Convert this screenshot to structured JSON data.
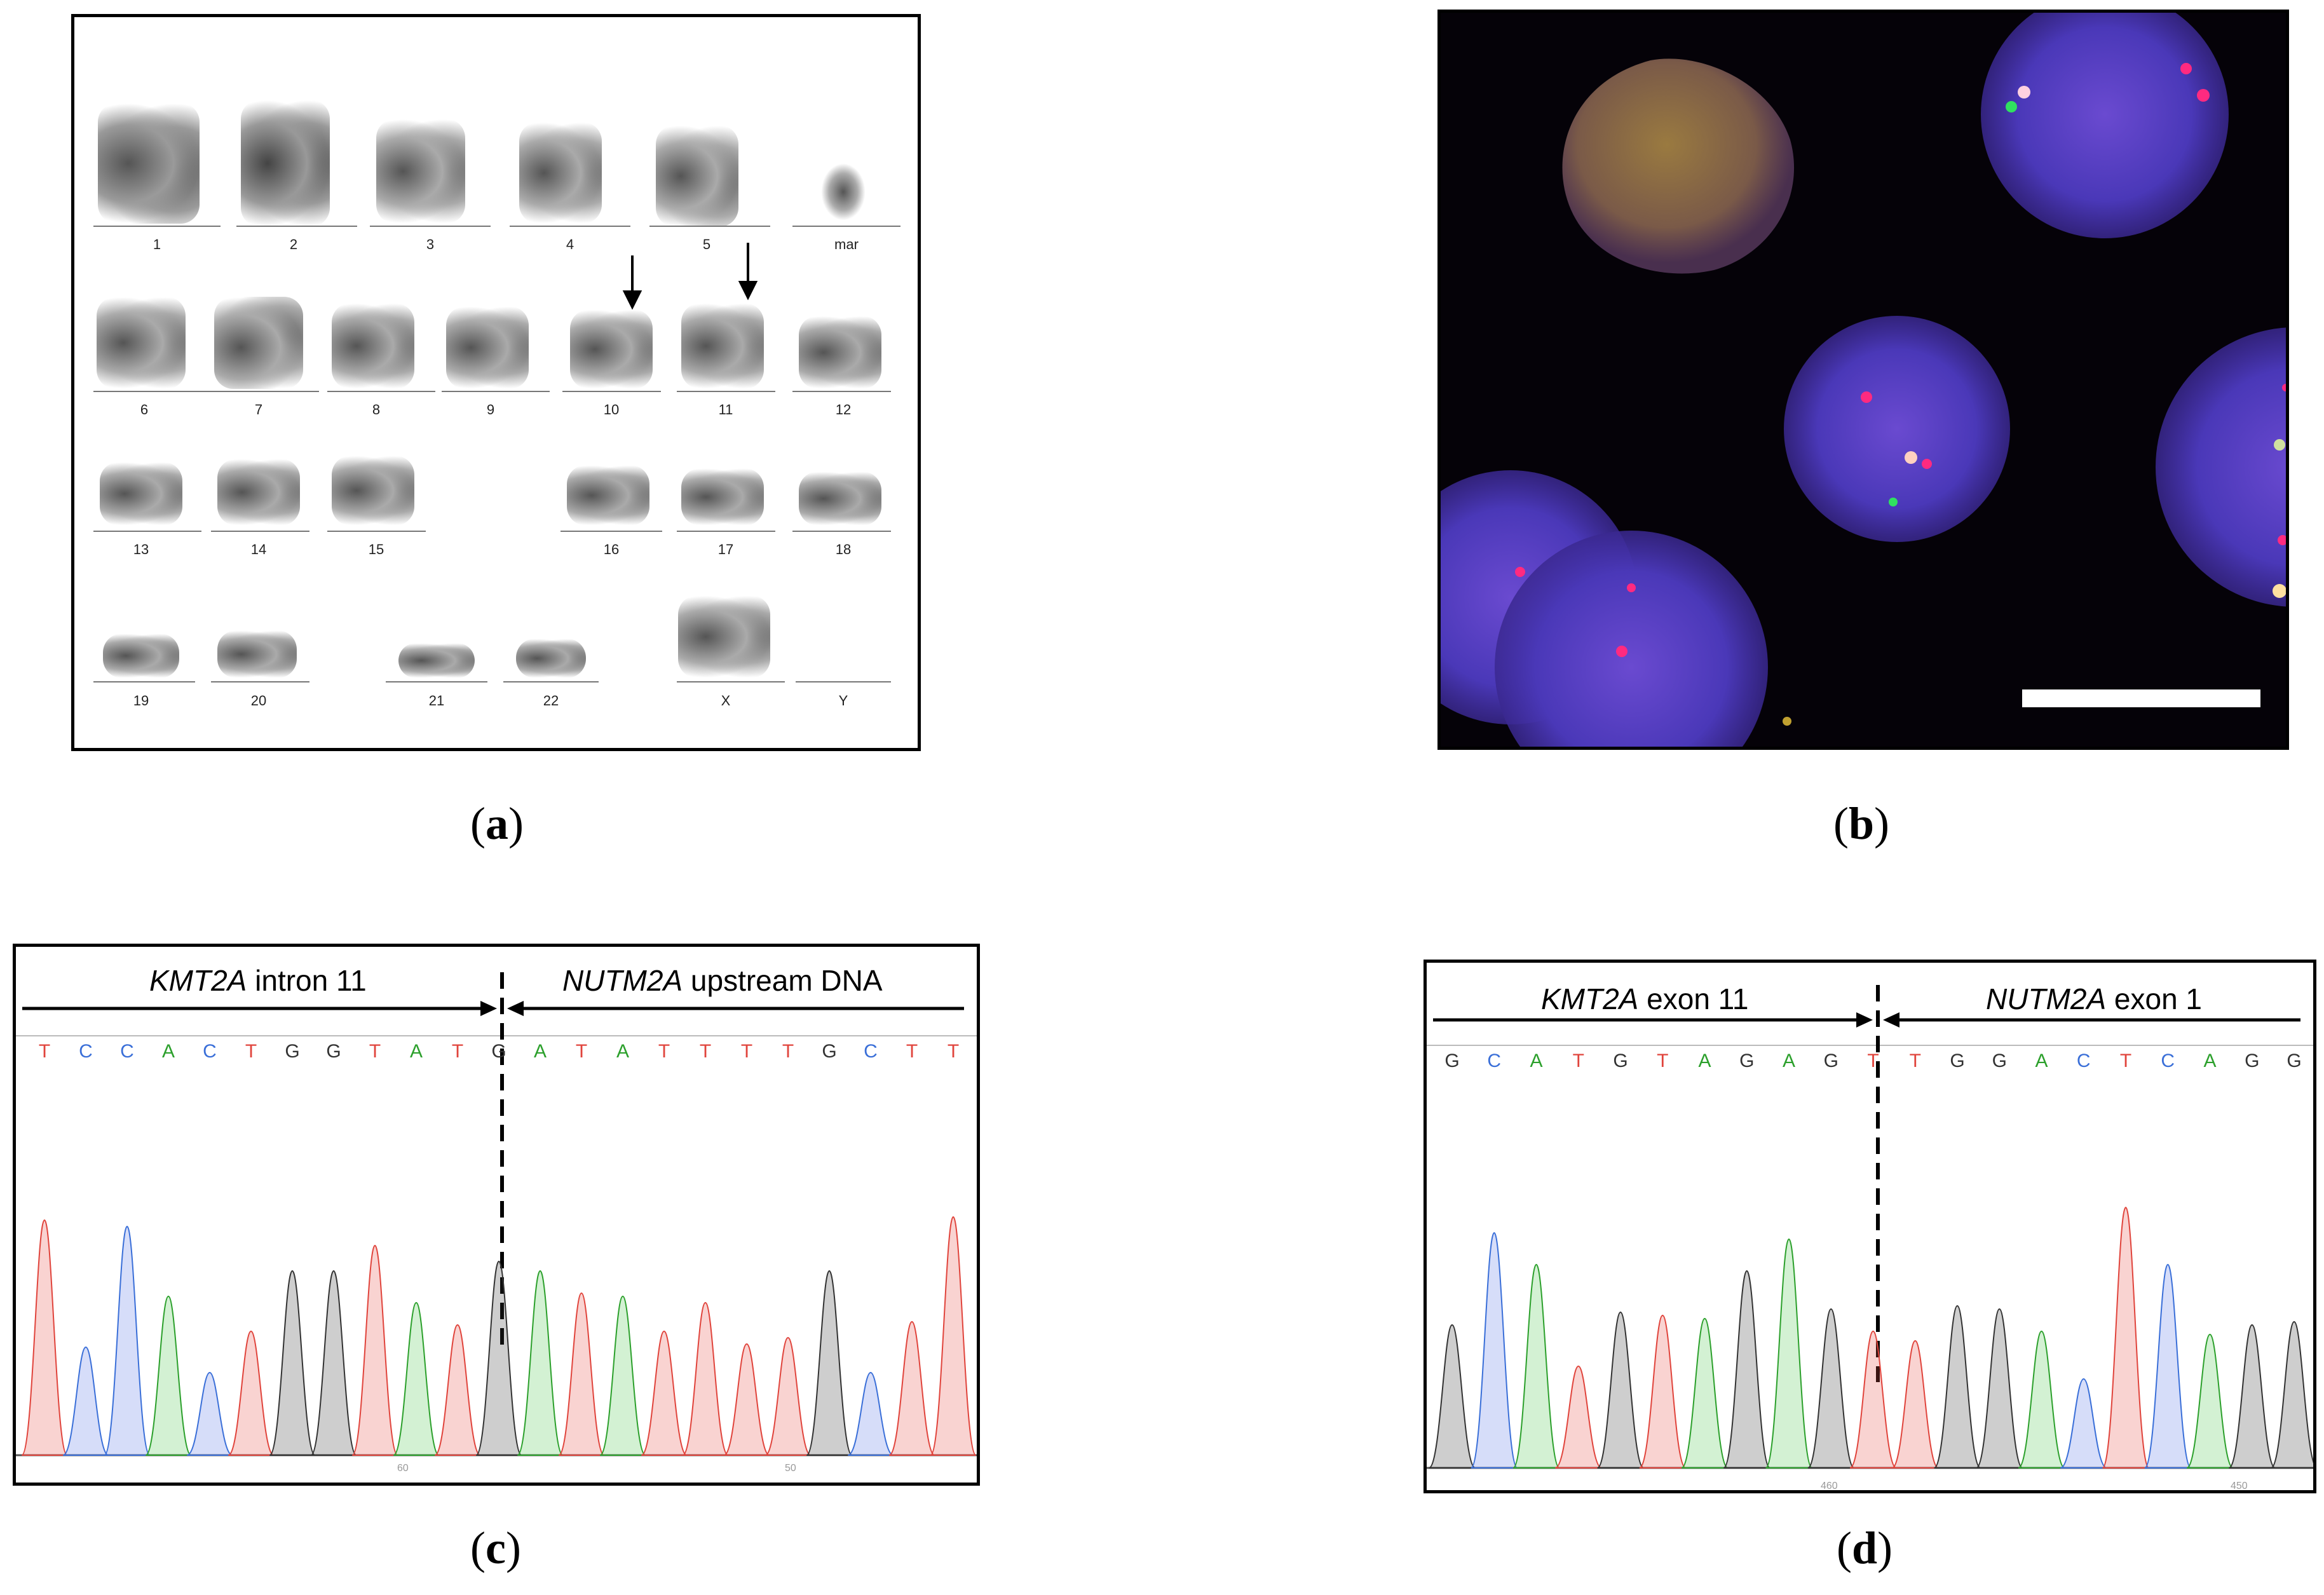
{
  "panel_labels": {
    "a": "a",
    "b": "b",
    "c": "c",
    "d": "d"
  },
  "karyotype": {
    "labels": [
      "1",
      "2",
      "3",
      "4",
      "5",
      "mar",
      "6",
      "7",
      "8",
      "9",
      "10",
      "11",
      "12",
      "13",
      "14",
      "15",
      "16",
      "17",
      "18",
      "19",
      "20",
      "21",
      "22",
      "X",
      "Y"
    ]
  },
  "panel_c": {
    "left_gene": "KMT2A",
    "left_suffix": " intron 11",
    "right_gene": "NUTM2A",
    "right_suffix": " upstream DNA",
    "bases": [
      "T",
      "C",
      "C",
      "A",
      "C",
      "T",
      "G",
      "G",
      "T",
      "A",
      "T",
      "G",
      "A",
      "T",
      "A",
      "T",
      "T",
      "T",
      "T",
      "G",
      "C",
      "T",
      "T"
    ],
    "ticks": [
      "60",
      "50"
    ]
  },
  "panel_d": {
    "left_gene": "KMT2A",
    "left_suffix": " exon 11",
    "right_gene": "NUTM2A",
    "right_suffix": " exon 1",
    "bases": [
      "G",
      "C",
      "A",
      "T",
      "G",
      "T",
      "A",
      "G",
      "A",
      "G",
      "T",
      "T",
      "G",
      "G",
      "A",
      "C",
      "T",
      "C",
      "A",
      "G",
      "G"
    ],
    "ticks": [
      "460",
      "450"
    ]
  },
  "colors": {
    "A": "#2ca02c",
    "C": "#3a6fd8",
    "G": "#333333",
    "T": "#e0443c"
  }
}
